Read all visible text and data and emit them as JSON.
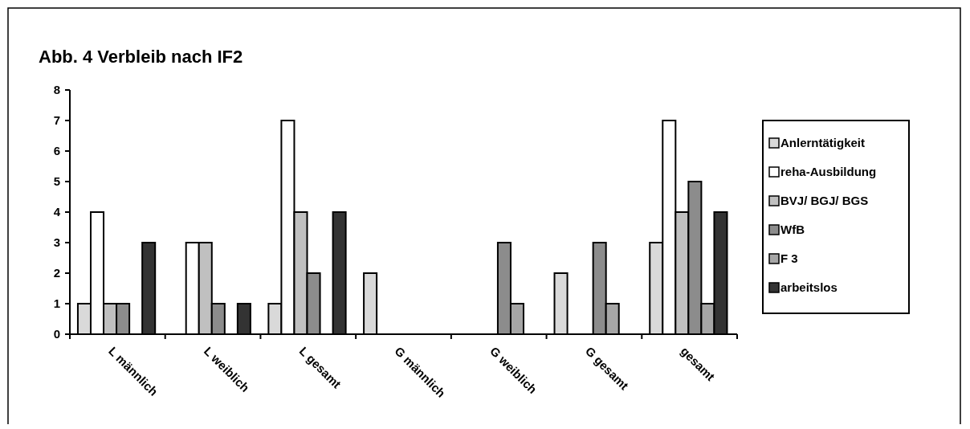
{
  "chart_data": {
    "type": "bar",
    "title": "Abb. 4   Verbleib nach IF2",
    "categories": [
      "L männlich",
      "L weiblich",
      "L gesamt",
      "G männlich",
      "G weiblich",
      "G gesamt",
      "gesamt"
    ],
    "series": [
      {
        "name": "Anlerntätigkeit",
        "color": "#d9d9d9",
        "values": [
          1,
          0,
          1,
          2,
          0,
          2,
          3
        ]
      },
      {
        "name": "reha-Ausbildung",
        "color": "#ffffff",
        "values": [
          4,
          3,
          7,
          0,
          0,
          0,
          7
        ]
      },
      {
        "name": "BVJ/ BGJ/ BGS",
        "color": "#c0c0c0",
        "values": [
          1,
          3,
          4,
          0,
          0,
          0,
          4
        ]
      },
      {
        "name": "WfB",
        "color": "#8c8c8c",
        "values": [
          1,
          1,
          2,
          0,
          3,
          3,
          5
        ]
      },
      {
        "name": "F 3",
        "color": "#a6a6a6",
        "values": [
          0,
          0,
          0,
          0,
          1,
          1,
          1
        ]
      },
      {
        "name": "arbeitslos",
        "color": "#333333",
        "values": [
          3,
          1,
          4,
          0,
          0,
          0,
          4
        ]
      }
    ],
    "ylim": [
      0,
      8
    ],
    "yticks": [
      0,
      1,
      2,
      3,
      4,
      5,
      6,
      7,
      8
    ],
    "grid": false,
    "legend": "right"
  }
}
